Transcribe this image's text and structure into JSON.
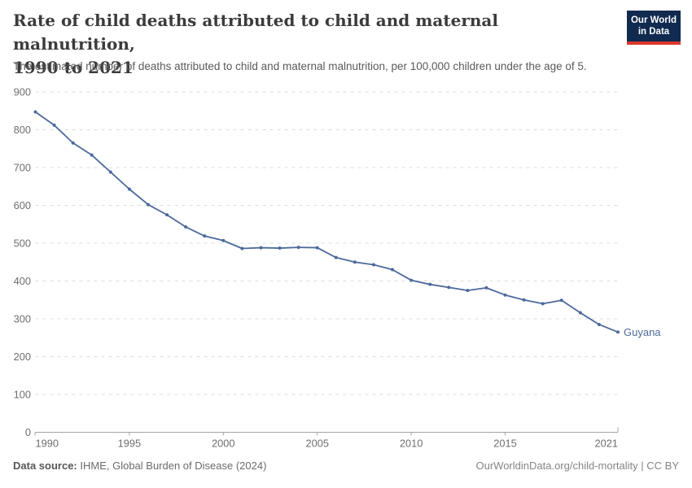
{
  "header": {
    "title_line1": "Rate of child deaths attributed to child and maternal malnutrition,",
    "title_line2": "1990 to 2021",
    "subtitle": "The estimated number of deaths attributed to child and maternal malnutrition, per 100,000 children under the age of 5.",
    "logo": {
      "line1": "Our World",
      "line2": "in Data"
    }
  },
  "chart_data": {
    "type": "line",
    "title": "Rate of child deaths attributed to child and maternal malnutrition, 1990 to 2021",
    "subtitle": "The estimated number of deaths attributed to child and maternal malnutrition, per 100,000 children under the age of 5.",
    "xlabel": "",
    "ylabel": "",
    "x": [
      1990,
      1991,
      1992,
      1993,
      1994,
      1995,
      1996,
      1997,
      1998,
      1999,
      2000,
      2001,
      2002,
      2003,
      2004,
      2005,
      2006,
      2007,
      2008,
      2009,
      2010,
      2011,
      2012,
      2013,
      2014,
      2015,
      2016,
      2017,
      2018,
      2019,
      2020,
      2021
    ],
    "series": [
      {
        "name": "Guyana",
        "color": "#4C6A9C",
        "values": [
          847,
          812,
          765,
          733,
          688,
          643,
          602,
          575,
          543,
          519,
          507,
          486,
          488,
          487,
          489,
          488,
          462,
          450,
          443,
          430,
          402,
          391,
          383,
          375,
          382,
          363,
          350,
          340,
          349,
          316,
          285,
          265
        ]
      }
    ],
    "ylim": [
      0,
      900
    ],
    "yticks": [
      0,
      100,
      200,
      300,
      400,
      500,
      600,
      700,
      800,
      900
    ],
    "xticks": [
      1990,
      1995,
      2000,
      2005,
      2010,
      2015,
      2021
    ],
    "grid": "horizontal-dashed",
    "grid_color": "#dcdcdc",
    "axis_color": "#a5a5a5",
    "legend_position": "end-of-line-label"
  },
  "footer": {
    "source_label": "Data source:",
    "source_text": " IHME, Global Burden of Disease (2024)",
    "link_text": "OurWorldinData.org/child-mortality | CC BY"
  }
}
